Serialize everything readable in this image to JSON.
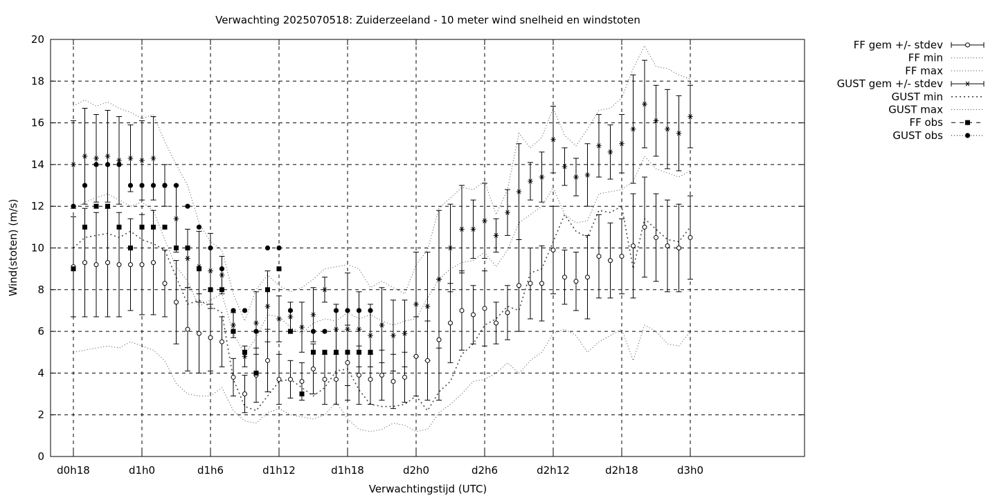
{
  "chart_data": {
    "type": "line",
    "title": "Verwachting 2025070518: Zuiderzeeland - 10 meter wind snelheid en windstoten",
    "xlabel": "Verwachtingstijd (UTC)",
    "ylabel": "Wind(stoten) (m/s)",
    "ylim": [
      0,
      20
    ],
    "xlim": [
      -2,
      64
    ],
    "x_unit": "hours since d0h18",
    "yticks": [
      0,
      2,
      4,
      6,
      8,
      10,
      12,
      14,
      16,
      18,
      20
    ],
    "xticks": [
      {
        "x": 0,
        "label": "d0h18"
      },
      {
        "x": 6,
        "label": "d1h0"
      },
      {
        "x": 12,
        "label": "d1h6"
      },
      {
        "x": 18,
        "label": "d1h12"
      },
      {
        "x": 24,
        "label": "d1h18"
      },
      {
        "x": 30,
        "label": "d2h0"
      },
      {
        "x": 36,
        "label": "d2h6"
      },
      {
        "x": 42,
        "label": "d2h12"
      },
      {
        "x": 48,
        "label": "d2h18"
      },
      {
        "x": 54,
        "label": "d3h0"
      }
    ],
    "grid": true,
    "legend_position": "outside-right",
    "legend": [
      "FF gem +/- stdev",
      "FF min",
      "FF max",
      "GUST gem +/- stdev",
      "GUST min",
      "GUST max",
      "FF obs",
      "GUST obs"
    ],
    "x": [
      0,
      1,
      2,
      3,
      4,
      5,
      6,
      7,
      8,
      9,
      10,
      11,
      12,
      13,
      14,
      15,
      16,
      17,
      18,
      19,
      20,
      21,
      22,
      23,
      24,
      25,
      26,
      27,
      28,
      29,
      30,
      31,
      32,
      33,
      34,
      35,
      36,
      37,
      38,
      39,
      40,
      41,
      42,
      43,
      44,
      45,
      46,
      47,
      48,
      49,
      50,
      51,
      52,
      53,
      54
    ],
    "ff_mean": [
      9.1,
      9.3,
      9.2,
      9.3,
      9.2,
      9.2,
      9.2,
      9.3,
      8.3,
      7.4,
      6.1,
      5.9,
      5.7,
      5.5,
      3.8,
      3.0,
      3.9,
      4.6,
      3.7,
      3.7,
      3.6,
      4.2,
      3.7,
      3.7,
      4.5,
      3.9,
      3.7,
      3.9,
      3.6,
      3.8,
      4.8,
      4.6,
      5.6,
      6.4,
      7.0,
      6.8,
      7.1,
      6.4,
      6.9,
      8.2,
      8.3,
      8.3,
      9.9,
      8.6,
      8.4,
      8.6,
      9.6,
      9.4,
      9.6,
      10.1,
      11.0,
      10.5,
      10.1,
      10.0,
      10.5
    ],
    "ff_std": [
      2.4,
      2.6,
      2.5,
      2.6,
      2.5,
      2.2,
      2.4,
      2.5,
      1.6,
      2.0,
      2.0,
      1.9,
      1.6,
      1.2,
      0.9,
      0.9,
      1.3,
      1.5,
      1.2,
      0.9,
      0.9,
      1.2,
      1.2,
      1.2,
      1.8,
      1.4,
      1.2,
      1.2,
      1.3,
      1.2,
      1.9,
      1.9,
      2.9,
      1.9,
      1.9,
      1.4,
      1.8,
      1.0,
      1.3,
      2.2,
      1.7,
      1.8,
      2.1,
      1.3,
      1.4,
      2.0,
      2.0,
      1.8,
      1.8,
      2.5,
      2.4,
      2.1,
      2.2,
      2.1,
      2.0
    ],
    "ff_min": [
      5.0,
      5.1,
      5.2,
      5.3,
      5.2,
      5.5,
      5.3,
      5.1,
      4.6,
      3.5,
      3.0,
      2.9,
      2.9,
      3.3,
      2.2,
      1.7,
      1.6,
      2.1,
      2.3,
      2.0,
      1.9,
      1.8,
      2.0,
      2.6,
      1.8,
      1.3,
      1.2,
      1.3,
      1.6,
      1.5,
      1.2,
      1.3,
      2.1,
      2.5,
      3.0,
      3.6,
      3.7,
      4.0,
      4.5,
      4.0,
      4.6,
      5.0,
      5.9,
      6.1,
      5.8,
      5.0,
      5.5,
      5.8,
      6.1,
      4.6,
      6.3,
      6.0,
      5.4,
      5.3,
      6.0
    ],
    "ff_max": [
      11.9,
      12.2,
      12.4,
      12.6,
      12.3,
      12.0,
      12.2,
      11.8,
      10.4,
      9.1,
      8.4,
      7.2,
      7.5,
      7.8,
      5.9,
      4.9,
      5.7,
      6.8,
      6.7,
      6.2,
      5.9,
      6.4,
      6.6,
      6.5,
      6.9,
      6.6,
      6.8,
      6.5,
      6.3,
      6.5,
      6.6,
      7.6,
      8.5,
      9.0,
      9.3,
      9.4,
      9.8,
      9.1,
      9.9,
      11.2,
      11.6,
      12.0,
      12.9,
      11.6,
      11.2,
      11.3,
      12.6,
      12.7,
      12.8,
      13.2,
      14.4,
      13.8,
      13.6,
      13.4,
      13.7
    ],
    "gust_mean": [
      14.0,
      14.4,
      14.3,
      14.4,
      14.2,
      14.3,
      14.2,
      14.3,
      13.0,
      11.4,
      9.5,
      9.1,
      8.9,
      8.7,
      6.3,
      4.8,
      6.4,
      7.2,
      6.6,
      6.7,
      6.2,
      6.8,
      8.0,
      6.1,
      6.1,
      6.1,
      5.8,
      6.3,
      5.8,
      5.9,
      7.3,
      7.2,
      8.5,
      10.0,
      10.9,
      10.9,
      11.3,
      10.6,
      11.7,
      12.7,
      13.2,
      13.4,
      15.2,
      13.9,
      13.4,
      13.5,
      14.9,
      14.6,
      15.0,
      15.7,
      16.9,
      16.1,
      15.7,
      15.5,
      16.3
    ],
    "gust_std": [
      2.1,
      2.3,
      2.1,
      2.2,
      2.1,
      1.6,
      1.9,
      2.0,
      1.0,
      1.6,
      1.4,
      1.7,
      1.8,
      0.9,
      0.6,
      0.5,
      1.5,
      1.7,
      1.1,
      0.7,
      1.2,
      1.3,
      0.6,
      1.2,
      2.7,
      1.8,
      1.5,
      1.8,
      1.7,
      1.6,
      2.5,
      2.6,
      3.3,
      2.1,
      2.1,
      1.4,
      1.8,
      0.8,
      1.1,
      2.3,
      0.9,
      1.2,
      1.6,
      0.9,
      0.9,
      1.5,
      1.5,
      1.3,
      1.4,
      2.6,
      2.1,
      1.7,
      1.9,
      1.8,
      1.5
    ],
    "gust_min": [
      10.0,
      10.5,
      10.6,
      10.7,
      10.5,
      10.8,
      10.4,
      10.2,
      9.9,
      8.6,
      7.3,
      7.5,
      7.2,
      6.9,
      3.7,
      2.4,
      2.2,
      2.9,
      3.6,
      3.7,
      3.3,
      2.9,
      3.3,
      4.1,
      4.2,
      3.2,
      2.5,
      2.4,
      2.4,
      2.5,
      2.9,
      2.2,
      3.1,
      3.6,
      4.9,
      5.4,
      6.3,
      6.6,
      7.2,
      7.0,
      8.8,
      9.0,
      10.3,
      11.6,
      10.8,
      10.5,
      11.8,
      11.7,
      12.0,
      9.0,
      11.4,
      10.9,
      10.4,
      10.3,
      11.0
    ],
    "gust_max": [
      16.8,
      17.1,
      16.8,
      17.0,
      16.7,
      16.5,
      16.2,
      16.4,
      15.1,
      14.0,
      13.0,
      11.2,
      10.3,
      9.9,
      7.8,
      6.5,
      8.0,
      8.7,
      8.2,
      7.9,
      8.1,
      8.5,
      9.0,
      9.1,
      9.2,
      9.0,
      8.1,
      8.4,
      8.1,
      7.8,
      9.2,
      9.9,
      11.9,
      12.4,
      12.9,
      12.8,
      13.2,
      11.6,
      12.8,
      15.5,
      14.8,
      15.3,
      16.7,
      15.4,
      14.9,
      15.7,
      16.6,
      16.7,
      17.2,
      18.6,
      19.7,
      18.7,
      18.6,
      18.3,
      18.1
    ],
    "ff_obs": [
      9,
      11,
      12,
      12,
      11,
      10,
      11,
      11,
      11,
      10,
      10,
      9,
      8,
      8,
      6,
      5,
      4,
      8,
      9,
      6,
      3,
      5,
      5,
      5,
      5,
      5,
      5
    ],
    "gust_obs": [
      12,
      13,
      14,
      14,
      14,
      13,
      13,
      13,
      13,
      13,
      12,
      11,
      10,
      9,
      7,
      7,
      6,
      10,
      10,
      7,
      null,
      6,
      6,
      7,
      7,
      7,
      7
    ]
  }
}
